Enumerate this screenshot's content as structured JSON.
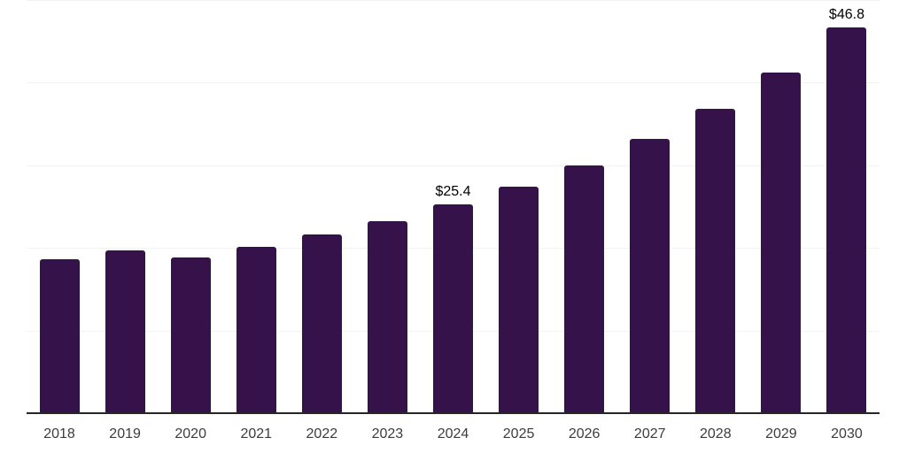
{
  "chart_data": {
    "type": "bar",
    "title": "",
    "categories": [
      "2018",
      "2019",
      "2020",
      "2021",
      "2022",
      "2023",
      "2024",
      "2025",
      "2026",
      "2027",
      "2028",
      "2029",
      "2030"
    ],
    "values": [
      18.7,
      19.8,
      18.9,
      20.2,
      21.7,
      23.3,
      25.4,
      27.5,
      30.1,
      33.3,
      36.9,
      41.3,
      46.8
    ],
    "bar_labels": {
      "2024": "$25.4",
      "2030": "$46.8"
    },
    "ylim": [
      0,
      50
    ],
    "gridline_step": 10,
    "grid": true,
    "legend": "none",
    "y_axis_ticks_visible": false,
    "colors": {
      "bar": "#36124b",
      "axis": "#262626",
      "gridline": "#f2f2f2",
      "tick_label": "#3c3c3c",
      "data_label": "#000000",
      "background": "#ffffff"
    }
  }
}
